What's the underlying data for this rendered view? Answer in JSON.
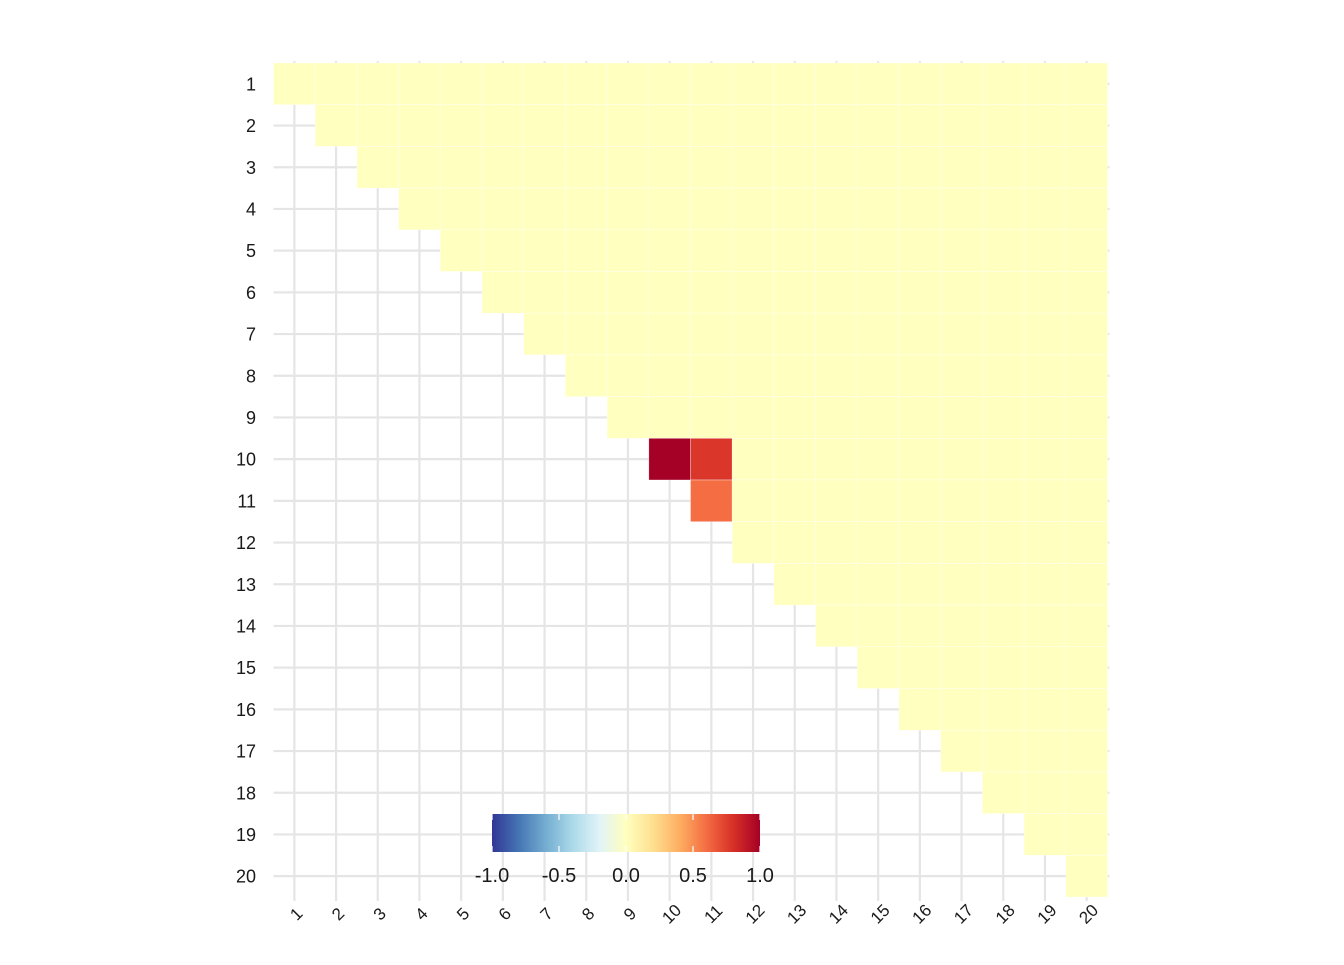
{
  "chart_data": {
    "type": "heatmap",
    "title": "",
    "xlabel": "",
    "ylabel": "",
    "x_categories": [
      "1",
      "2",
      "3",
      "4",
      "5",
      "6",
      "7",
      "8",
      "9",
      "10",
      "11",
      "12",
      "13",
      "14",
      "15",
      "16",
      "17",
      "18",
      "19",
      "20"
    ],
    "y_categories": [
      "1",
      "2",
      "3",
      "4",
      "5",
      "6",
      "7",
      "8",
      "9",
      "10",
      "11",
      "12",
      "13",
      "14",
      "15",
      "16",
      "17",
      "18",
      "19",
      "20"
    ],
    "layout": "upper-triangle (row i, columns i..20)",
    "default_value": 0.0,
    "nonzero_cells": [
      {
        "row": "10",
        "col": "10",
        "value": 1.0
      },
      {
        "row": "10",
        "col": "11",
        "value": 0.78
      },
      {
        "row": "11",
        "col": "11",
        "value": 0.6
      }
    ],
    "colorscale": {
      "name": "RdYlBu (reversed)",
      "low": -1.0,
      "high": 1.0,
      "stops": [
        "#313695",
        "#4575b4",
        "#74add1",
        "#abd9e9",
        "#e0f3f8",
        "#ffffbf",
        "#fee090",
        "#fdae61",
        "#f46d43",
        "#d73027",
        "#a50026"
      ]
    },
    "legend": {
      "placement": "bottom-center (inside plot)",
      "ticks": [
        "-1.0",
        "-0.5",
        "0.0",
        "0.5",
        "1.0"
      ],
      "tick_values": [
        -1.0,
        -0.5,
        0.0,
        0.5,
        1.0
      ]
    },
    "grid": true
  }
}
